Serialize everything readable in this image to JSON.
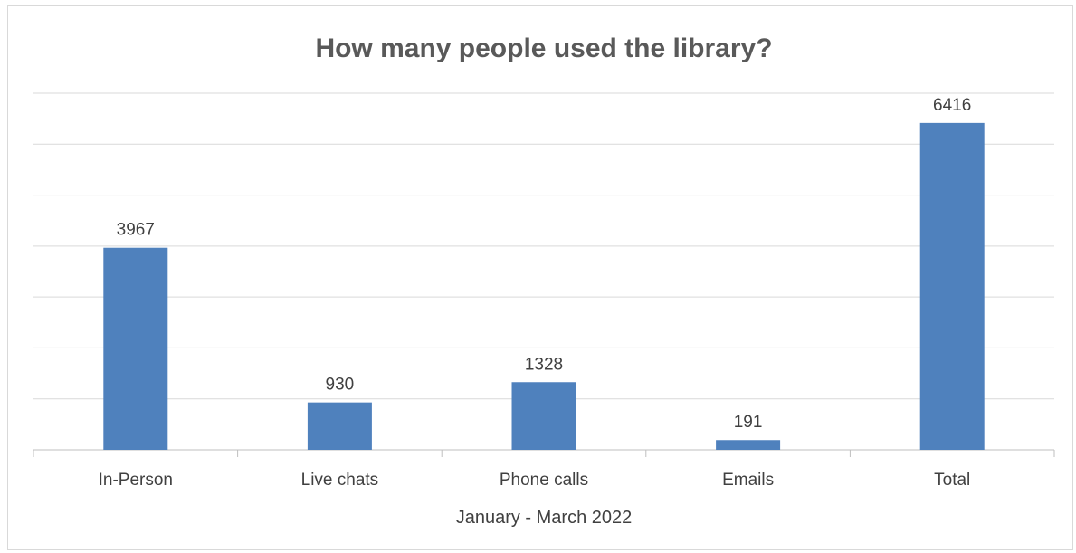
{
  "chart_data": {
    "type": "bar",
    "title": "How many people used the library?",
    "xlabel": "January - March 2022",
    "ylabel": "",
    "categories": [
      "In-Person",
      "Live chats",
      "Phone calls",
      "Emails",
      "Total"
    ],
    "values": [
      3967,
      930,
      1328,
      191,
      6416
    ],
    "ylim": [
      0,
      7000
    ],
    "y_gridline_step": 1000,
    "y_tick_labels_shown": false,
    "grid": true,
    "legend": "none",
    "colors": {
      "bar": "#4f81bd",
      "gridline": "#d9d9d9",
      "axis": "#bfbfbf"
    }
  }
}
